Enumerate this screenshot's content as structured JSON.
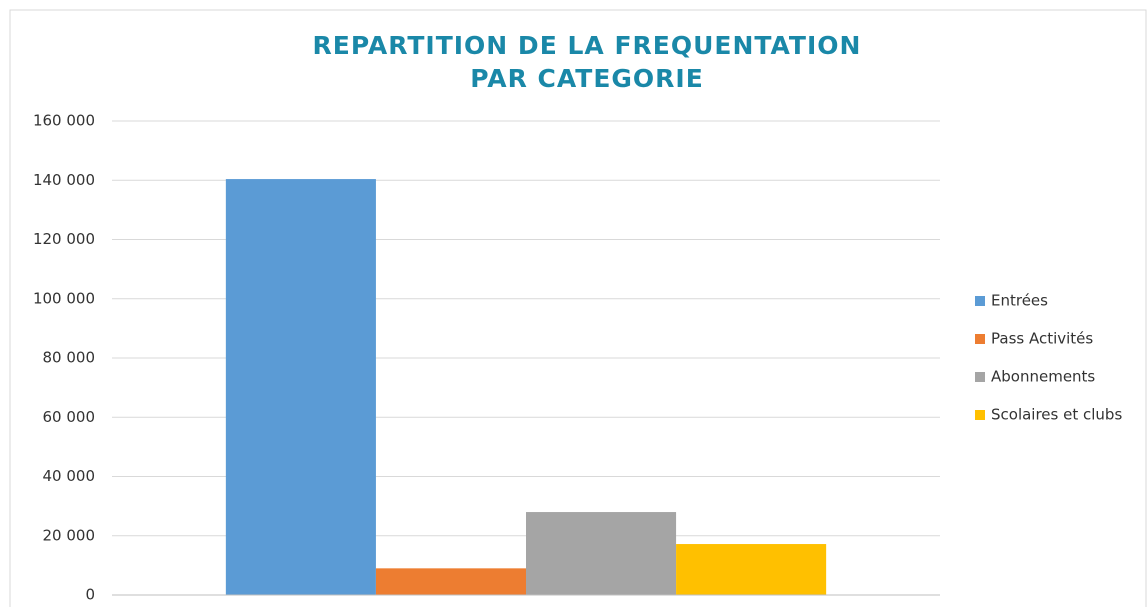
{
  "chart_data": {
    "type": "bar",
    "title": [
      "REPARTITION DE LA FREQUENTATION",
      "PAR CATEGORIE"
    ],
    "categories": [
      null
    ],
    "series": [
      {
        "name": "Entrées",
        "color": "#5b9bd5",
        "values": [
          140400
        ]
      },
      {
        "name": "Pass Activités",
        "color": "#ed7d31",
        "values": [
          9000
        ]
      },
      {
        "name": "Abonnements",
        "color": "#a5a5a5",
        "values": [
          28000
        ]
      },
      {
        "name": "Scolaires et clubs",
        "color": "#ffc000",
        "values": [
          17200
        ]
      }
    ],
    "ylim": [
      0,
      160000
    ],
    "yticks": [
      {
        "value": 0,
        "label": "0"
      },
      {
        "value": 20000,
        "label": "20 000"
      },
      {
        "value": 40000,
        "label": "40 000"
      },
      {
        "value": 60000,
        "label": "60 000"
      },
      {
        "value": 80000,
        "label": "80 000"
      },
      {
        "value": 100000,
        "label": "100 000"
      },
      {
        "value": 120000,
        "label": "120 000"
      },
      {
        "value": 140000,
        "label": "140 000"
      },
      {
        "value": 160000,
        "label": "160 000"
      }
    ],
    "grid": true,
    "legend": "right"
  }
}
